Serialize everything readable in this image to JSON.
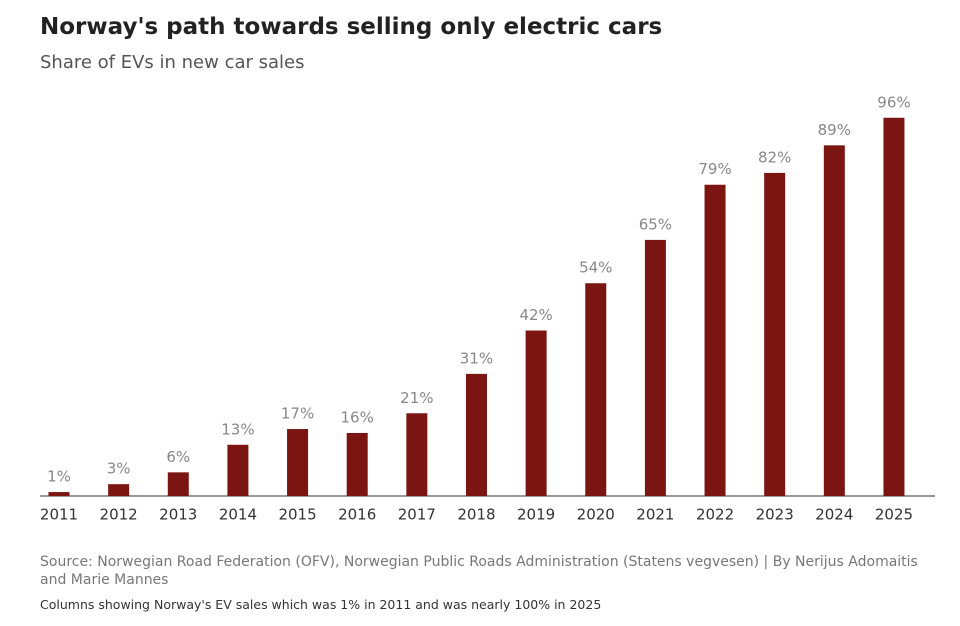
{
  "chart_data": {
    "type": "bar",
    "title": "Norway's path towards selling only electric cars",
    "subtitle": "Share of EVs in new car sales",
    "categories": [
      "2011",
      "2012",
      "2013",
      "2014",
      "2015",
      "2016",
      "2017",
      "2018",
      "2019",
      "2020",
      "2021",
      "2022",
      "2023",
      "2024",
      "2025"
    ],
    "values": [
      1,
      3,
      6,
      13,
      17,
      16,
      21,
      31,
      42,
      54,
      65,
      79,
      82,
      89,
      96
    ],
    "value_labels": [
      "1%",
      "3%",
      "6%",
      "13%",
      "17%",
      "16%",
      "21%",
      "31%",
      "42%",
      "54%",
      "65%",
      "79%",
      "82%",
      "89%",
      "96%"
    ],
    "color": "#7b1512",
    "source": "Source: Norwegian Road Federation (OFV), Norwegian Public Roads Administration (Statens vegvesen)  | By Nerijus Adomaitis and Marie Mannes",
    "caption": "Columns showing Norway's EV sales which was 1% in 2011 and was nearly 100% in 2025"
  }
}
